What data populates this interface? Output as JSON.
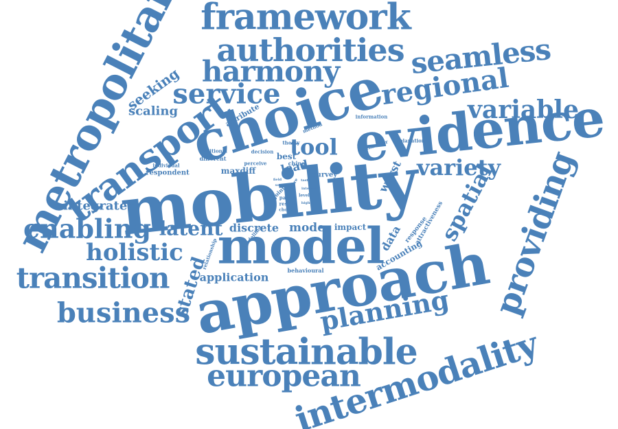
{
  "word_cloud": {
    "color": "#4a81b9",
    "words": [
      "mobility",
      "approach",
      "choice",
      "evidence",
      "model",
      "metropolitan",
      "transport",
      "intermodality",
      "sustainable",
      "providing",
      "framework",
      "authorities",
      "seamless",
      "harmony",
      "regional",
      "service",
      "european",
      "planning",
      "variable",
      "transition",
      "business",
      "enabling",
      "holistic",
      "spatial",
      "variety",
      "tool",
      "latent",
      "stated",
      "integrated",
      "scaling",
      "seeking",
      "data",
      "mode",
      "discrete",
      "lead",
      "application",
      "worst",
      "maxdiff",
      "impact",
      "accounting",
      "response",
      "attractiveness",
      "attribute",
      "respondent",
      "individual",
      "traditional",
      "different",
      "information",
      "method",
      "explanation",
      "behaviour",
      "decision",
      "theory",
      "best",
      "perceive",
      "china",
      "survey",
      "joint",
      "paper",
      "result",
      "level",
      "chosen",
      "modelling",
      "relationship",
      "behavioural",
      "field",
      "more",
      "taste",
      "interest",
      "source",
      "higher"
    ]
  }
}
